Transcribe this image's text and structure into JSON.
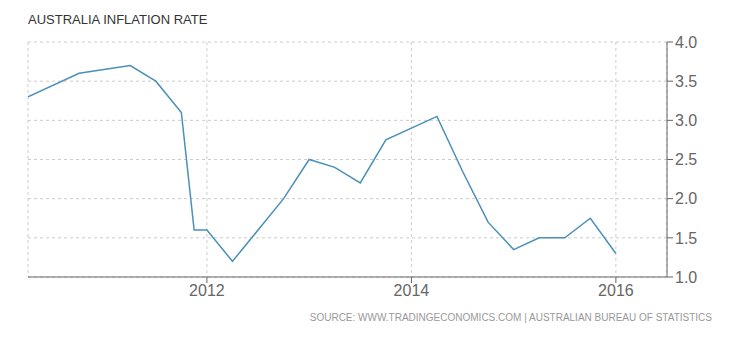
{
  "chart_data": {
    "type": "line",
    "title": "AUSTRALIA INFLATION RATE",
    "source": "SOURCE: WWW.TRADINGECONOMICS.COM  |  AUSTRALIAN BUREAU OF STATISTICS",
    "x": [
      2010.25,
      2010.75,
      2011.25,
      2011.5,
      2011.75,
      2011.875,
      2012.0,
      2012.25,
      2012.75,
      2013.0,
      2013.25,
      2013.5,
      2013.75,
      2014.0,
      2014.25,
      2014.5,
      2014.75,
      2015.0,
      2015.25,
      2015.5,
      2015.75,
      2016.0
    ],
    "values": [
      3.3,
      3.6,
      3.7,
      3.5,
      3.1,
      1.6,
      1.6,
      1.2,
      2.0,
      2.5,
      2.4,
      2.2,
      2.75,
      2.9,
      3.05,
      2.35,
      1.7,
      1.35,
      1.5,
      1.5,
      1.75,
      1.3
    ],
    "color": "#4a90b8",
    "xlim": [
      2010.25,
      2016.5
    ],
    "xticks": [
      2012,
      2014,
      2016
    ],
    "ylim": [
      1.0,
      4.0
    ],
    "yticks": [
      {
        "value": 1,
        "label": "1.0"
      },
      1.5,
      {
        "value": 2,
        "label": "2.0"
      },
      2.5,
      {
        "value": 3,
        "label": "3.0"
      },
      3.5,
      {
        "value": 4,
        "label": "4.0"
      }
    ],
    "grid": true
  }
}
